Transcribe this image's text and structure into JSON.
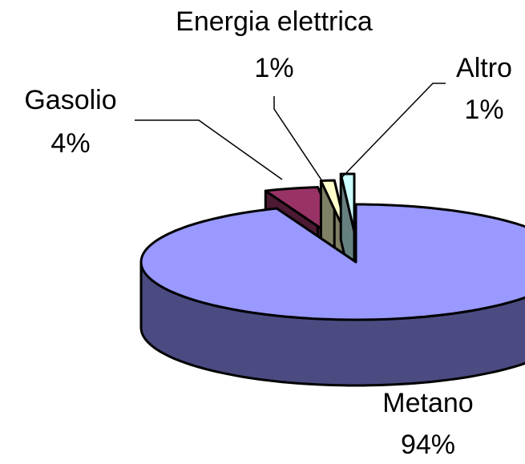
{
  "chart_data": {
    "type": "pie",
    "style": "3d-exploded",
    "title": "",
    "slices": [
      {
        "name": "Metano",
        "value": 94,
        "label": "94%",
        "color_top": "#9999FF",
        "color_side": "#4B4B82"
      },
      {
        "name": "Gasolio",
        "value": 4,
        "label": "4%",
        "color_top": "#993366",
        "color_side": "#4D1A33"
      },
      {
        "name": "Energia elettrica",
        "value": 1,
        "label": "1%",
        "color_top": "#FFFFCC",
        "color_side": "#808066"
      },
      {
        "name": "Altro",
        "value": 1,
        "label": "1%",
        "color_top": "#CCFFFF",
        "color_side": "#668080"
      }
    ],
    "legend": "none",
    "data_labels": "category and percent"
  }
}
